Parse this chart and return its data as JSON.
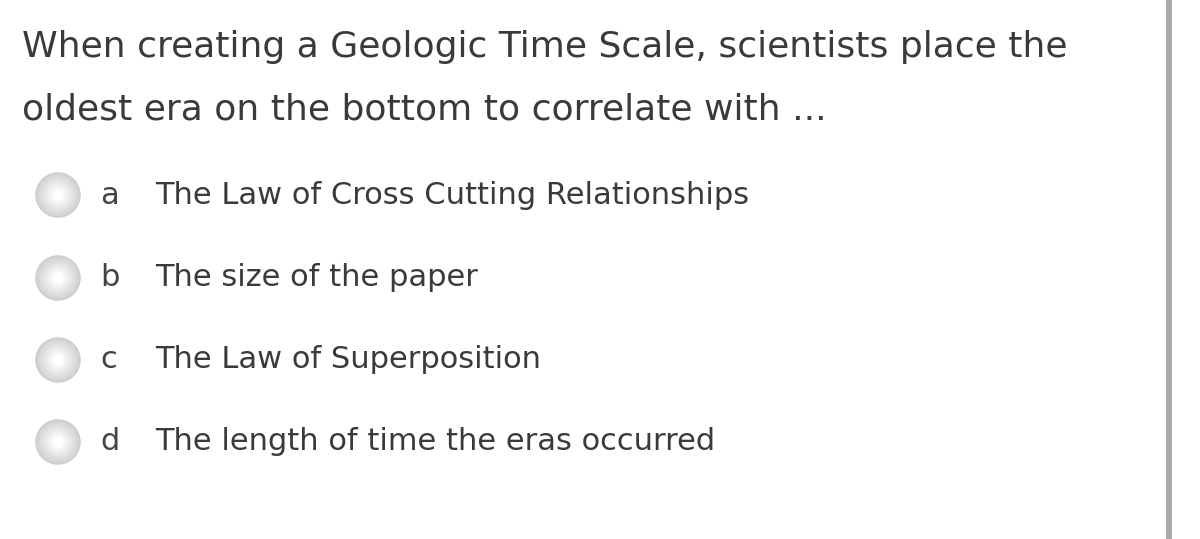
{
  "question_line1": "When creating a Geologic Time Scale, scientists place the",
  "question_line2": "oldest era on the bottom to correlate with ...",
  "options": [
    {
      "label": "a",
      "text": "The Law of Cross Cutting Relationships",
      "circle_color": "#d8d8d8"
    },
    {
      "label": "b",
      "text": "The size of the paper",
      "circle_color": "#d0d0d0"
    },
    {
      "label": "c",
      "text": "The Law of Superposition",
      "circle_color": "#d0d0d0"
    },
    {
      "label": "d",
      "text": "The length of time the eras occurred",
      "circle_color": "#c0c0c0"
    }
  ],
  "bg_color": "#ffffff",
  "text_color": "#3a3a3a",
  "label_color": "#444444",
  "question_fontsize": 26,
  "option_fontsize": 22,
  "label_fontsize": 22,
  "right_bar_color": "#aaaaaa"
}
